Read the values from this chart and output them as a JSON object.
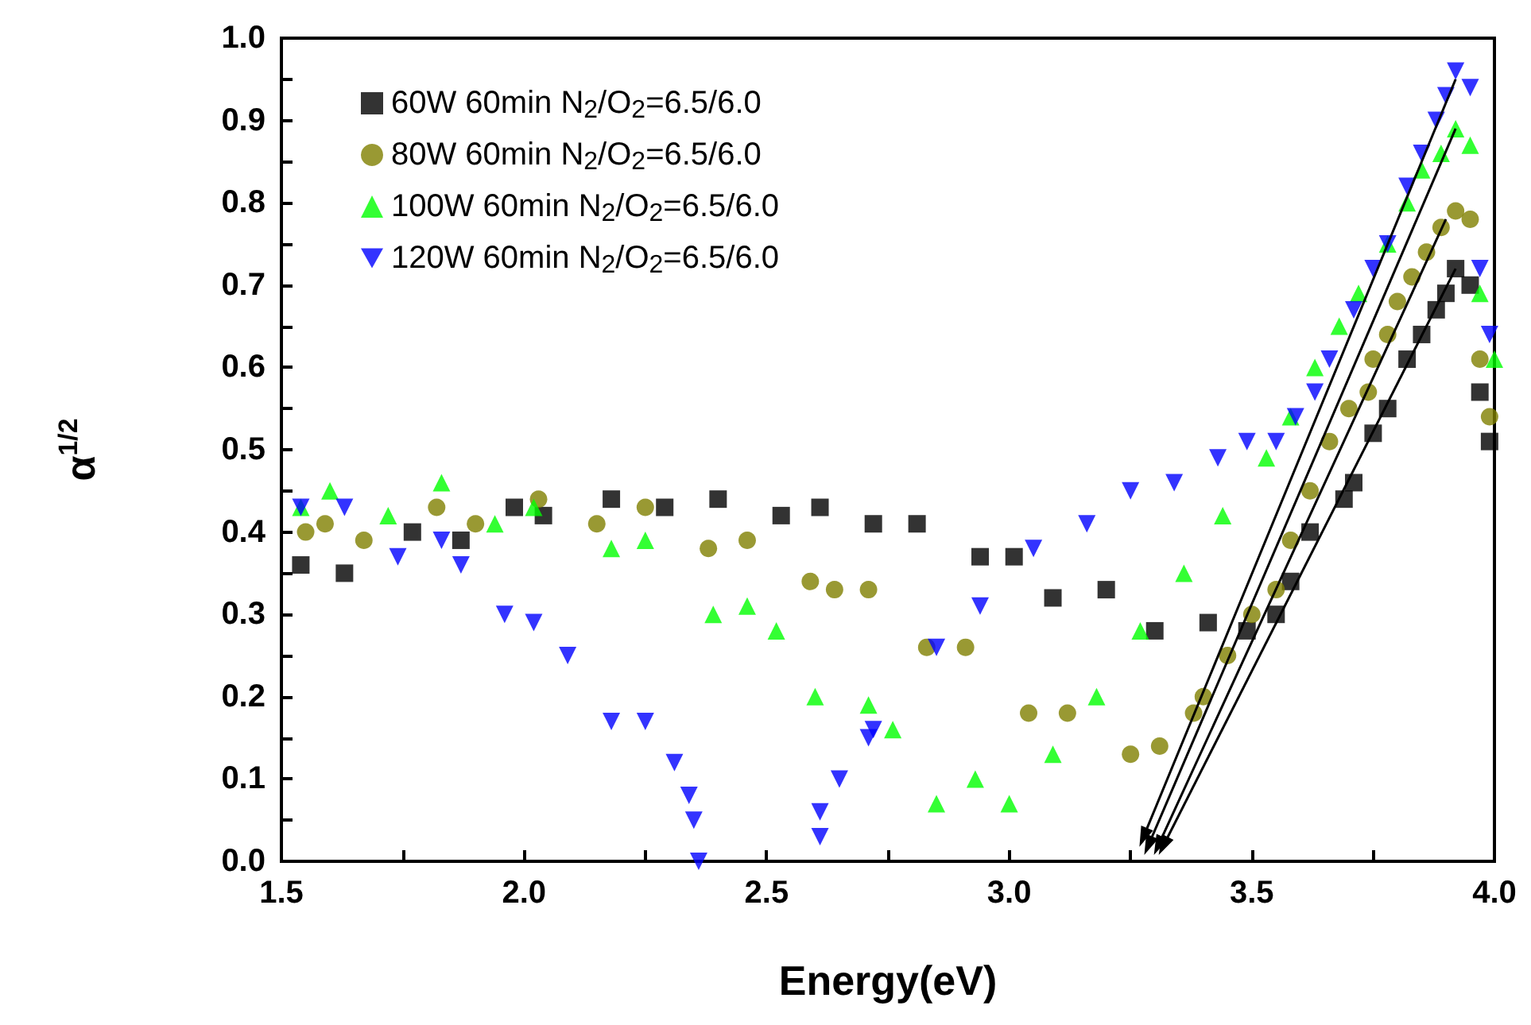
{
  "chart_data": {
    "type": "scatter",
    "xlabel": "Energy(eV)",
    "ylabel": "α$^{1/2}$",
    "xlim": [
      1.5,
      4.0
    ],
    "ylim": [
      0,
      1.0
    ],
    "xticks": [
      1.5,
      {
        "value": 1.75,
        "label": null
      },
      {
        "value": 2.0,
        "label": "2.0"
      },
      {
        "value": 2.25,
        "label": null
      },
      2.5,
      {
        "value": 2.75,
        "label": null
      },
      {
        "value": 3.0,
        "label": "3.0"
      },
      {
        "value": 3.25,
        "label": null
      },
      3.5,
      {
        "value": 3.75,
        "label": null
      },
      {
        "value": 4.0,
        "label": "4.0"
      }
    ],
    "yticks": [
      {
        "value": 0,
        "label": "0.0"
      },
      {
        "value": 0.05,
        "label": null
      },
      0.1,
      {
        "value": 0.15,
        "label": null
      },
      0.2,
      {
        "value": 0.25,
        "label": null
      },
      0.3,
      {
        "value": 0.35,
        "label": null
      },
      0.4,
      {
        "value": 0.45,
        "label": null
      },
      0.5,
      {
        "value": 0.55,
        "label": null
      },
      0.6,
      {
        "value": 0.65,
        "label": null
      },
      0.7,
      {
        "value": 0.75,
        "label": null
      },
      0.8,
      {
        "value": 0.85,
        "label": null
      },
      0.9,
      {
        "value": 0.95,
        "label": null
      },
      {
        "value": 1.0,
        "label": "1.0"
      }
    ],
    "grid": false,
    "legend": "top left",
    "series": [
      {
        "name": "60W 60min N$_{2}$/O$_{2}$=6.5/6.0",
        "color": "#000000",
        "marker": "square",
        "x": [
          1.54,
          1.63,
          1.77,
          1.87,
          1.98,
          2.04,
          2.18,
          2.29,
          2.4,
          2.53,
          2.61,
          2.72,
          2.81,
          2.94,
          3.01,
          3.09,
          3.2,
          3.3,
          3.41,
          3.49,
          3.55,
          3.58,
          3.62,
          3.69,
          3.71,
          3.75,
          3.78,
          3.82,
          3.85,
          3.88,
          3.9,
          3.92,
          3.95,
          3.97,
          3.99
        ],
        "values": [
          0.36,
          0.35,
          0.4,
          0.39,
          0.43,
          0.42,
          0.44,
          0.43,
          0.44,
          0.42,
          0.43,
          0.41,
          0.41,
          0.37,
          0.37,
          0.32,
          0.33,
          0.28,
          0.29,
          0.28,
          0.3,
          0.34,
          0.4,
          0.44,
          0.46,
          0.52,
          0.55,
          0.61,
          0.64,
          0.67,
          0.69,
          0.72,
          0.7,
          0.57,
          0.51
        ]
      },
      {
        "name": "80W 60min N$_{2}$/O$_{2}$=6.5/6.0",
        "color": "#808000",
        "marker": "circle",
        "x": [
          1.55,
          1.59,
          1.67,
          1.82,
          1.9,
          2.03,
          2.15,
          2.25,
          2.38,
          2.46,
          2.59,
          2.64,
          2.71,
          2.83,
          2.91,
          3.04,
          3.12,
          3.25,
          3.31,
          3.38,
          3.4,
          3.45,
          3.5,
          3.55,
          3.58,
          3.62,
          3.66,
          3.7,
          3.74,
          3.75,
          3.78,
          3.8,
          3.83,
          3.86,
          3.89,
          3.92,
          3.95,
          3.97,
          3.99
        ],
        "values": [
          0.4,
          0.41,
          0.39,
          0.43,
          0.41,
          0.44,
          0.41,
          0.43,
          0.38,
          0.39,
          0.34,
          0.33,
          0.33,
          0.26,
          0.26,
          0.18,
          0.18,
          0.13,
          0.14,
          0.18,
          0.2,
          0.25,
          0.3,
          0.33,
          0.39,
          0.45,
          0.51,
          0.55,
          0.57,
          0.61,
          0.64,
          0.68,
          0.71,
          0.74,
          0.77,
          0.79,
          0.78,
          0.61,
          0.54
        ]
      },
      {
        "name": "100W 60min N$_{2}$/O$_{2}$=6.5/6.0",
        "color": "#00ff00",
        "marker": "triangle",
        "x": [
          1.54,
          1.6,
          1.72,
          1.83,
          1.94,
          2.02,
          2.18,
          2.25,
          2.39,
          2.46,
          2.52,
          2.6,
          2.71,
          2.76,
          2.85,
          2.93,
          3.0,
          3.09,
          3.18,
          3.27,
          3.36,
          3.44,
          3.53,
          3.58,
          3.63,
          3.68,
          3.72,
          3.78,
          3.82,
          3.85,
          3.89,
          3.92,
          3.95,
          3.97,
          4.0
        ],
        "values": [
          0.43,
          0.45,
          0.42,
          0.46,
          0.41,
          0.43,
          0.38,
          0.39,
          0.3,
          0.31,
          0.28,
          0.2,
          0.19,
          0.16,
          0.07,
          0.1,
          0.07,
          0.13,
          0.2,
          0.28,
          0.35,
          0.42,
          0.49,
          0.54,
          0.6,
          0.65,
          0.69,
          0.75,
          0.8,
          0.84,
          0.86,
          0.89,
          0.87,
          0.69,
          0.61
        ]
      },
      {
        "name": "120W 60min N$_{2}$/O$_{2}$=6.5/6.0",
        "color": "#0000ff",
        "marker": "triangle-down",
        "x": [
          1.54,
          1.63,
          1.74,
          1.83,
          1.87,
          1.96,
          2.02,
          2.09,
          2.18,
          2.25,
          2.31,
          2.34,
          2.35,
          2.36,
          2.61,
          2.61,
          2.65,
          2.71,
          2.72,
          2.85,
          2.94,
          3.05,
          3.16,
          3.25,
          3.34,
          3.43,
          3.49,
          3.55,
          3.59,
          3.63,
          3.66,
          3.71,
          3.75,
          3.78,
          3.82,
          3.85,
          3.88,
          3.9,
          3.92,
          3.95,
          3.97,
          3.99
        ],
        "values": [
          0.43,
          0.43,
          0.37,
          0.39,
          0.36,
          0.3,
          0.29,
          0.25,
          0.17,
          0.17,
          0.12,
          0.08,
          0.05,
          0.0,
          0.03,
          0.06,
          0.1,
          0.15,
          0.16,
          0.26,
          0.31,
          0.38,
          0.41,
          0.45,
          0.46,
          0.49,
          0.51,
          0.51,
          0.54,
          0.57,
          0.61,
          0.67,
          0.72,
          0.75,
          0.82,
          0.86,
          0.9,
          0.93,
          0.96,
          0.94,
          0.72,
          0.64
        ]
      }
    ]
  }
}
